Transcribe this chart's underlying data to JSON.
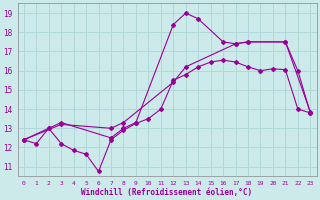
{
  "title": "",
  "xlabel": "Windchill (Refroidissement éolien,°C)",
  "ylabel": "",
  "xlim": [
    -0.5,
    23.5
  ],
  "ylim": [
    10.5,
    19.5
  ],
  "xticks": [
    0,
    1,
    2,
    3,
    4,
    5,
    6,
    7,
    8,
    9,
    10,
    11,
    12,
    13,
    14,
    15,
    16,
    17,
    18,
    19,
    20,
    21,
    22,
    23
  ],
  "yticks": [
    11,
    12,
    13,
    14,
    15,
    16,
    17,
    18,
    19
  ],
  "bg_color": "#cdeaea",
  "line_color": "#990099",
  "grid_color": "#b0d8d8",
  "line1_x": [
    0,
    1,
    2,
    3,
    4,
    5,
    6,
    7,
    8,
    9,
    10,
    11,
    12,
    13,
    14,
    15,
    16,
    17,
    18,
    19,
    20,
    21,
    22,
    23
  ],
  "line1_y": [
    12.4,
    12.2,
    13.0,
    12.2,
    11.85,
    11.65,
    10.75,
    12.4,
    12.9,
    13.25,
    13.5,
    14.0,
    15.5,
    15.8,
    16.2,
    16.45,
    16.55,
    16.45,
    16.2,
    16.0,
    16.1,
    16.05,
    14.0,
    13.8
  ],
  "line2_x": [
    0,
    2,
    3,
    7,
    8,
    9,
    12,
    13,
    14,
    16,
    17,
    18,
    21,
    22,
    23
  ],
  "line2_y": [
    12.4,
    13.0,
    13.3,
    12.5,
    13.0,
    13.3,
    18.4,
    19.0,
    18.7,
    17.5,
    17.4,
    17.5,
    17.5,
    16.0,
    13.8
  ],
  "line3_x": [
    0,
    3,
    7,
    8,
    12,
    13,
    17,
    18,
    21,
    23
  ],
  "line3_y": [
    12.4,
    13.2,
    13.0,
    13.3,
    15.4,
    16.2,
    17.4,
    17.5,
    17.5,
    13.85
  ]
}
